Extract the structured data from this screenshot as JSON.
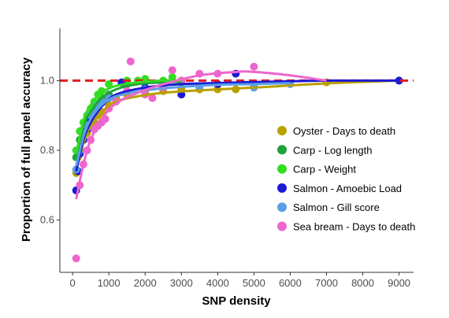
{
  "chart_data": {
    "type": "scatter",
    "title": "",
    "xlabel": "SNP density",
    "ylabel": "Proportion of full panel accuracy",
    "xlim": [
      -350,
      9400
    ],
    "ylim": [
      0.45,
      1.15
    ],
    "x_ticks": [
      0,
      1000,
      2000,
      3000,
      4000,
      5000,
      6000,
      7000,
      8000,
      9000
    ],
    "y_ticks": [
      0.6,
      0.8,
      1.0
    ],
    "y_tick_labels": [
      "0.6",
      "0.8",
      "1.0"
    ],
    "grid": false,
    "legend_position": "right",
    "reference_line": {
      "y": 1.0,
      "color": "#e41a1c",
      "style": "dashed"
    },
    "series": [
      {
        "name": "Oyster - Days to death",
        "color": "#b8a000",
        "points": [
          [
            100,
            0.735
          ],
          [
            150,
            0.78
          ],
          [
            200,
            0.8
          ],
          [
            300,
            0.83
          ],
          [
            400,
            0.85
          ],
          [
            500,
            0.87
          ],
          [
            600,
            0.88
          ],
          [
            700,
            0.9
          ],
          [
            800,
            0.91
          ],
          [
            1000,
            0.93
          ],
          [
            1200,
            0.95
          ],
          [
            1500,
            0.96
          ],
          [
            2000,
            0.965
          ],
          [
            2500,
            0.97
          ],
          [
            3000,
            0.975
          ],
          [
            3500,
            0.975
          ],
          [
            4000,
            0.975
          ],
          [
            4500,
            0.975
          ],
          [
            5000,
            0.99
          ],
          [
            7000,
            0.995
          ]
        ],
        "curve": [
          [
            100,
            0.745
          ],
          [
            300,
            0.82
          ],
          [
            500,
            0.87
          ],
          [
            800,
            0.91
          ],
          [
            1200,
            0.94
          ],
          [
            1800,
            0.955
          ],
          [
            2500,
            0.965
          ],
          [
            3500,
            0.972
          ],
          [
            5000,
            0.98
          ],
          [
            7000,
            0.992
          ],
          [
            9000,
            1.0
          ]
        ]
      },
      {
        "name": "Carp - Log length",
        "color": "#1fa33b",
        "points": [
          [
            100,
            0.78
          ],
          [
            200,
            0.83
          ],
          [
            300,
            0.86
          ],
          [
            400,
            0.89
          ],
          [
            500,
            0.9
          ],
          [
            600,
            0.92
          ],
          [
            800,
            0.95
          ],
          [
            1000,
            0.96
          ],
          [
            1500,
            0.99
          ],
          [
            2000,
            1.0
          ],
          [
            3000,
            0.995
          ]
        ],
        "curve": [
          [
            100,
            0.775
          ],
          [
            300,
            0.87
          ],
          [
            500,
            0.91
          ],
          [
            800,
            0.95
          ],
          [
            1200,
            0.975
          ],
          [
            1800,
            0.99
          ],
          [
            2500,
            0.995
          ],
          [
            3000,
            0.997
          ]
        ]
      },
      {
        "name": "Carp - Weight",
        "color": "#33dd22",
        "points": [
          [
            100,
            0.8
          ],
          [
            200,
            0.855
          ],
          [
            300,
            0.88
          ],
          [
            400,
            0.9
          ],
          [
            500,
            0.92
          ],
          [
            600,
            0.94
          ],
          [
            700,
            0.96
          ],
          [
            800,
            0.97
          ],
          [
            1000,
            0.99
          ],
          [
            1500,
            1.0
          ],
          [
            1800,
            1.0
          ],
          [
            2000,
            1.005
          ],
          [
            2500,
            1.0
          ],
          [
            2750,
            1.01
          ],
          [
            3000,
            1.0
          ]
        ],
        "curve": [
          [
            100,
            0.79
          ],
          [
            300,
            0.885
          ],
          [
            500,
            0.93
          ],
          [
            800,
            0.965
          ],
          [
            1200,
            0.985
          ],
          [
            1800,
            0.995
          ],
          [
            2500,
            1.0
          ],
          [
            3000,
            1.0
          ]
        ]
      },
      {
        "name": "Salmon - Amoebic Load",
        "color": "#1a1ad6",
        "points": [
          [
            100,
            0.685
          ],
          [
            150,
            0.74
          ],
          [
            200,
            0.79
          ],
          [
            300,
            0.83
          ],
          [
            400,
            0.86
          ],
          [
            500,
            0.89
          ],
          [
            600,
            0.91
          ],
          [
            800,
            0.94
          ],
          [
            1000,
            0.95
          ],
          [
            1350,
            0.995
          ],
          [
            2000,
            0.98
          ],
          [
            3000,
            0.96
          ],
          [
            4000,
            0.99
          ],
          [
            4500,
            1.02
          ],
          [
            9000,
            1.0
          ]
        ],
        "curve": [
          [
            100,
            0.74
          ],
          [
            300,
            0.83
          ],
          [
            500,
            0.88
          ],
          [
            800,
            0.925
          ],
          [
            1200,
            0.96
          ],
          [
            2000,
            0.98
          ],
          [
            3000,
            0.99
          ],
          [
            4000,
            0.993
          ],
          [
            5000,
            0.996
          ],
          [
            6000,
            0.998
          ],
          [
            7000,
            1.0
          ],
          [
            8000,
            1.0
          ],
          [
            9000,
            1.0
          ]
        ]
      },
      {
        "name": "Salmon - Gill score",
        "color": "#5b9ee6",
        "points": [
          [
            100,
            0.745
          ],
          [
            200,
            0.8
          ],
          [
            300,
            0.85
          ],
          [
            400,
            0.87
          ],
          [
            500,
            0.9
          ],
          [
            600,
            0.91
          ],
          [
            700,
            0.93
          ],
          [
            800,
            0.94
          ],
          [
            1000,
            0.95
          ],
          [
            1500,
            0.97
          ],
          [
            2000,
            0.975
          ],
          [
            2500,
            0.99
          ],
          [
            3500,
            0.98
          ],
          [
            5000,
            0.98
          ],
          [
            6000,
            0.99
          ]
        ],
        "curve": [
          [
            100,
            0.755
          ],
          [
            300,
            0.84
          ],
          [
            500,
            0.89
          ],
          [
            800,
            0.93
          ],
          [
            1200,
            0.955
          ],
          [
            2000,
            0.972
          ],
          [
            3000,
            0.982
          ],
          [
            4000,
            0.988
          ],
          [
            5000,
            0.99
          ],
          [
            6000,
            0.993
          ]
        ]
      },
      {
        "name": "Sea bream - Days to death",
        "color": "#ee66cc",
        "points": [
          [
            100,
            0.49
          ],
          [
            200,
            0.7
          ],
          [
            300,
            0.76
          ],
          [
            400,
            0.8
          ],
          [
            500,
            0.83
          ],
          [
            600,
            0.86
          ],
          [
            700,
            0.87
          ],
          [
            800,
            0.88
          ],
          [
            900,
            0.89
          ],
          [
            1000,
            0.92
          ],
          [
            1200,
            0.94
          ],
          [
            1500,
            0.97
          ],
          [
            1600,
            1.055
          ],
          [
            2000,
            0.96
          ],
          [
            2200,
            0.95
          ],
          [
            2500,
            0.98
          ],
          [
            2750,
            1.03
          ],
          [
            3000,
            1.0
          ],
          [
            3500,
            1.02
          ],
          [
            4000,
            1.02
          ],
          [
            5000,
            1.04
          ]
        ],
        "curve": [
          [
            100,
            0.66
          ],
          [
            300,
            0.76
          ],
          [
            500,
            0.83
          ],
          [
            800,
            0.89
          ],
          [
            1200,
            0.935
          ],
          [
            1800,
            0.965
          ],
          [
            2500,
            0.99
          ],
          [
            3500,
            1.015
          ],
          [
            4500,
            1.025
          ],
          [
            5000,
            1.025
          ],
          [
            6000,
            1.015
          ],
          [
            7000,
            1.0
          ]
        ]
      }
    ]
  }
}
